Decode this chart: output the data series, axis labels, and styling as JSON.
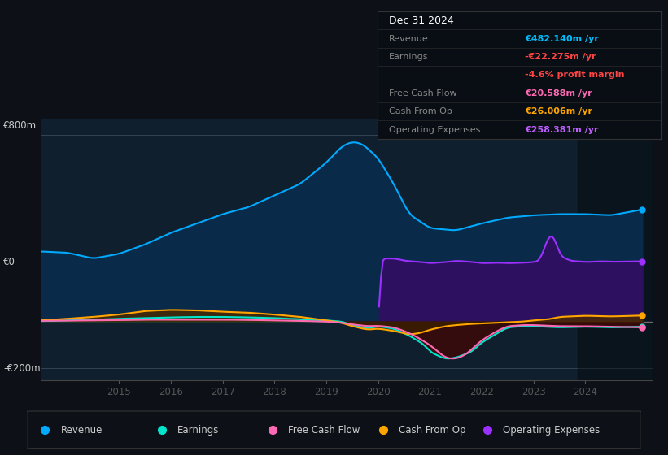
{
  "bg_color": "#0d1117",
  "plot_bg_color": "#0f1f2e",
  "table_data": {
    "Revenue": {
      "value": "€482.140m",
      "color": "#00bfff"
    },
    "Earnings": {
      "value": "-€22.275m",
      "color": "#ff4444",
      "sub": "-4.6% profit margin",
      "sub_color": "#ff4444"
    },
    "Free Cash Flow": {
      "value": "€20.588m",
      "color": "#ff69b4"
    },
    "Cash From Op": {
      "value": "€26.006m",
      "color": "#ffa500"
    },
    "Operating Expenses": {
      "value": "€258.381m",
      "color": "#bf5fff"
    }
  },
  "ylabel_top": "€800m",
  "ylabel_zero": "€0",
  "ylabel_bottom": "-€200m",
  "ylim": [
    -250,
    870
  ],
  "colors": {
    "revenue": "#00aaff",
    "earnings": "#00e5cc",
    "free_cash_flow": "#ff69b4",
    "cash_from_op": "#ffa500",
    "operating_expenses": "#9b30ff"
  },
  "legend": [
    {
      "label": "Revenue",
      "color": "#00aaff"
    },
    {
      "label": "Earnings",
      "color": "#00e5cc"
    },
    {
      "label": "Free Cash Flow",
      "color": "#ff69b4"
    },
    {
      "label": "Cash From Op",
      "color": "#ffa500"
    },
    {
      "label": "Operating Expenses",
      "color": "#9b30ff"
    }
  ]
}
